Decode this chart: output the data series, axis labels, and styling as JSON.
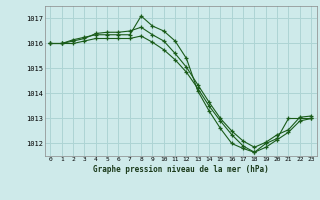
{
  "bg_color": "#ceeaea",
  "grid_color": "#add4d4",
  "line_color": "#1a5c1a",
  "title": "Graphe pression niveau de la mer (hPa)",
  "xlim": [
    -0.5,
    23.5
  ],
  "ylim": [
    1011.5,
    1017.5
  ],
  "yticks": [
    1012,
    1013,
    1014,
    1015,
    1016,
    1017
  ],
  "xticks": [
    0,
    1,
    2,
    3,
    4,
    5,
    6,
    7,
    8,
    9,
    10,
    11,
    12,
    13,
    14,
    15,
    16,
    17,
    18,
    19,
    20,
    21,
    22,
    23
  ],
  "series": [
    {
      "x": [
        0,
        1,
        2,
        3,
        4,
        5,
        6,
        7,
        8,
        9,
        10,
        11,
        12,
        13,
        14,
        15,
        16,
        17,
        18,
        19,
        20,
        21,
        22,
        23
      ],
      "y": [
        1016.0,
        1016.0,
        1016.15,
        1016.25,
        1016.35,
        1016.35,
        1016.35,
        1016.35,
        1017.1,
        1016.7,
        1016.5,
        1016.1,
        1015.4,
        1014.1,
        1013.3,
        1012.6,
        1012.0,
        1011.8,
        1011.65,
        1012.0,
        1012.2,
        1013.0,
        1013.0,
        1013.0
      ]
    },
    {
      "x": [
        0,
        1,
        2,
        3,
        4,
        5,
        6,
        7,
        8,
        9,
        10,
        11,
        12,
        13,
        14,
        15,
        16,
        17,
        18,
        19,
        20,
        21,
        22,
        23
      ],
      "y": [
        1016.0,
        1016.0,
        1016.1,
        1016.2,
        1016.4,
        1016.45,
        1016.45,
        1016.5,
        1016.65,
        1016.35,
        1016.1,
        1015.6,
        1015.05,
        1014.35,
        1013.65,
        1013.0,
        1012.5,
        1012.1,
        1011.85,
        1012.05,
        1012.35,
        1012.55,
        1013.05,
        1013.1
      ]
    },
    {
      "x": [
        0,
        1,
        2,
        3,
        4,
        5,
        6,
        7,
        8,
        9,
        10,
        11,
        12,
        13,
        14,
        15,
        16,
        17,
        18,
        19,
        20,
        21,
        22,
        23
      ],
      "y": [
        1016.0,
        1016.0,
        1016.0,
        1016.1,
        1016.2,
        1016.2,
        1016.2,
        1016.2,
        1016.3,
        1016.05,
        1015.75,
        1015.35,
        1014.85,
        1014.2,
        1013.5,
        1012.9,
        1012.35,
        1011.9,
        1011.65,
        1011.85,
        1012.15,
        1012.45,
        1012.9,
        1013.0
      ]
    }
  ]
}
